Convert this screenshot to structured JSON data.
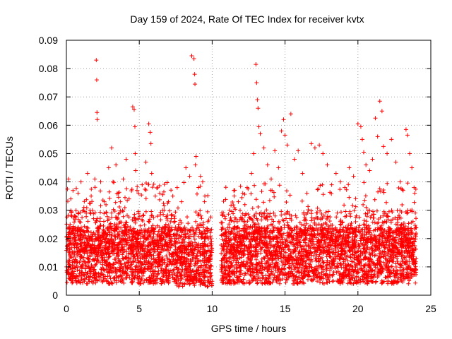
{
  "chart_data": {
    "type": "scatter",
    "title": "Day 159 of 2024, Rate Of TEC Index for receiver kvtx",
    "xlabel": "GPS time / hours",
    "ylabel": "ROTI / TECUs",
    "xlim": [
      0,
      25
    ],
    "ylim": [
      0,
      0.09
    ],
    "xticks": [
      "0",
      "5",
      "10",
      "15",
      "20",
      "25"
    ],
    "yticks": [
      "0",
      "0.01",
      "0.02",
      "0.03",
      "0.04",
      "0.05",
      "0.06",
      "0.07",
      "0.08",
      "0.09"
    ],
    "grid": true,
    "marker": "+",
    "color": "#ff0000",
    "data_gap_hours": [
      10.0,
      10.6
    ],
    "series": [
      {
        "name": "ROTI",
        "x": [
          0.15,
          0.3,
          0.55,
          0.8,
          1.0,
          1.2,
          1.45,
          1.7,
          1.95,
          2.05,
          2.08,
          2.1,
          2.12,
          2.35,
          2.6,
          2.9,
          3.1,
          3.2,
          3.4,
          3.55,
          3.7,
          3.9,
          4.1,
          4.3,
          4.55,
          4.65,
          4.7,
          4.72,
          4.75,
          4.95,
          5.2,
          5.45,
          5.65,
          5.75,
          5.8,
          5.85,
          6.1,
          6.4,
          6.7,
          7.0,
          7.3,
          7.6,
          7.9,
          8.2,
          8.45,
          8.6,
          8.75,
          8.8,
          8.82,
          8.85,
          8.9,
          9.2,
          9.35,
          9.5,
          9.7,
          10.7,
          10.9,
          11.2,
          11.5,
          11.8,
          12.1,
          12.4,
          12.7,
          12.85,
          13.0,
          13.05,
          13.1,
          13.15,
          13.2,
          13.3,
          13.55,
          13.8,
          14.05,
          14.3,
          14.55,
          14.75,
          14.9,
          15.0,
          15.15,
          15.4,
          15.65,
          15.9,
          16.2,
          16.5,
          16.8,
          17.05,
          17.35,
          17.6,
          17.9,
          18.2,
          18.5,
          18.8,
          19.1,
          19.4,
          19.7,
          20.0,
          20.2,
          20.3,
          20.4,
          20.55,
          20.8,
          21.0,
          21.2,
          21.35,
          21.5,
          21.65,
          21.75,
          22.0,
          22.3,
          22.6,
          22.9,
          23.1,
          23.3,
          23.4,
          23.55,
          23.7,
          23.85
        ],
        "y": [
          0.041,
          0.034,
          0.028,
          0.036,
          0.04,
          0.031,
          0.043,
          0.035,
          0.041,
          0.083,
          0.076,
          0.0645,
          0.062,
          0.04,
          0.033,
          0.045,
          0.052,
          0.04,
          0.046,
          0.036,
          0.033,
          0.041,
          0.048,
          0.034,
          0.0665,
          0.0655,
          0.0595,
          0.05,
          0.044,
          0.036,
          0.039,
          0.047,
          0.0605,
          0.0575,
          0.0535,
          0.043,
          0.035,
          0.036,
          0.03,
          0.033,
          0.035,
          0.038,
          0.033,
          0.045,
          0.042,
          0.0845,
          0.0835,
          0.078,
          0.0745,
          0.046,
          0.049,
          0.042,
          0.04,
          0.035,
          0.026,
          0.024,
          0.027,
          0.03,
          0.026,
          0.033,
          0.036,
          0.038,
          0.043,
          0.05,
          0.0815,
          0.075,
          0.069,
          0.066,
          0.0595,
          0.057,
          0.052,
          0.046,
          0.041,
          0.051,
          0.045,
          0.058,
          0.062,
          0.0565,
          0.053,
          0.064,
          0.048,
          0.051,
          0.043,
          0.036,
          0.0535,
          0.052,
          0.053,
          0.05,
          0.046,
          0.039,
          0.043,
          0.04,
          0.038,
          0.045,
          0.042,
          0.0605,
          0.0595,
          0.055,
          0.0505,
          0.046,
          0.044,
          0.048,
          0.0625,
          0.056,
          0.0685,
          0.065,
          0.0525,
          0.05,
          0.055,
          0.047,
          0.04,
          0.037,
          0.0585,
          0.0565,
          0.05,
          0.045,
          0.038
        ]
      }
    ]
  }
}
